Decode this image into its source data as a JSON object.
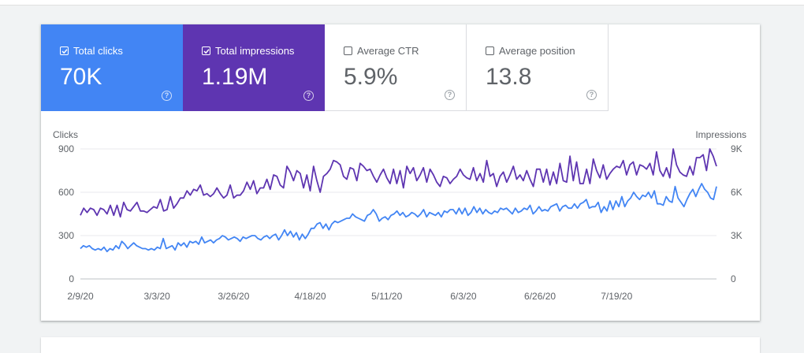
{
  "tiles": [
    {
      "label": "Total clicks",
      "value": "70K",
      "checked": true,
      "color": "#4285f4"
    },
    {
      "label": "Total impressions",
      "value": "1.19M",
      "checked": true,
      "color": "#5e35b1"
    },
    {
      "label": "Average CTR",
      "value": "5.9%",
      "checked": false
    },
    {
      "label": "Average position",
      "value": "13.8",
      "checked": false
    }
  ],
  "help_glyph": "?",
  "chart_data": {
    "type": "line",
    "x_tick_labels": [
      "2/9/20",
      "3/3/20",
      "3/26/20",
      "4/18/20",
      "5/11/20",
      "6/3/20",
      "6/26/20",
      "7/19/20"
    ],
    "x_start": "2020-02-09",
    "x_tick_step_days": 23,
    "left_axis": {
      "label": "Clicks",
      "ticks": [
        "0",
        "300",
        "600",
        "900"
      ],
      "tick_values": [
        0,
        300,
        600,
        900
      ],
      "ylim": [
        0,
        900
      ]
    },
    "right_axis": {
      "label": "Impressions",
      "ticks": [
        "0",
        "3K",
        "6K",
        "9K"
      ],
      "tick_values": [
        0,
        3000,
        6000,
        9000
      ],
      "ylim": [
        0,
        9000
      ]
    },
    "grid": true,
    "series": [
      {
        "axis": "right",
        "color": "#5e35b1",
        "values": [
          4400,
          4900,
          4600,
          4900,
          4800,
          4400,
          4900,
          4800,
          4500,
          5100,
          4400,
          5100,
          4300,
          5300,
          4800,
          4700,
          5000,
          5300,
          4700,
          4700,
          4600,
          4800,
          5000,
          4900,
          5500,
          4700,
          4800,
          5700,
          4900,
          5200,
          5600,
          5600,
          6100,
          5800,
          6200,
          6100,
          6500,
          5800,
          5900,
          5700,
          5900,
          6300,
          5900,
          5600,
          5800,
          6500,
          5600,
          5800,
          5800,
          6100,
          6700,
          6200,
          6800,
          5900,
          6300,
          6300,
          6900,
          6200,
          7200,
          7100,
          6500,
          6300,
          7800,
          7400,
          6800,
          7500,
          7300,
          6300,
          7200,
          6100,
          7800,
          6800,
          6000,
          7100,
          7300,
          7600,
          8200,
          8100,
          7900,
          7100,
          6900,
          7700,
          7600,
          6800,
          8000,
          7800,
          7500,
          7600,
          7100,
          6700,
          7200,
          7600,
          7000,
          6600,
          7600,
          6600,
          7500,
          6300,
          7800,
          7300,
          7700,
          6800,
          7200,
          7700,
          6700,
          7600,
          7200,
          6700,
          6400,
          7100,
          7000,
          6600,
          6900,
          7100,
          7600,
          7200,
          7000,
          6900,
          7700,
          6800,
          7300,
          6700,
          8200,
          7100,
          7300,
          6400,
          7100,
          7400,
          6700,
          7200,
          7800,
          6900,
          7200,
          6800,
          7500,
          6900,
          6400,
          7600,
          7600,
          6700,
          7600,
          6500,
          7400,
          6600,
          8000,
          6800,
          6700,
          8500,
          6800,
          8100,
          6600,
          6600,
          7600,
          6600,
          8300,
          7500,
          7000,
          7900,
          6900,
          7300,
          7600,
          7800,
          7700,
          8200,
          7200,
          7900,
          8100,
          7200,
          7900,
          7800,
          7600,
          8000,
          7200,
          8800,
          7500,
          7100,
          7700,
          7000,
          9000,
          7900,
          7400,
          7200,
          7100,
          7800,
          7200,
          8400,
          8400,
          8600,
          7500,
          9000,
          8500,
          7800
        ]
      },
      {
        "axis": "left",
        "color": "#4285f4",
        "values": [
          210,
          230,
          220,
          230,
          210,
          200,
          210,
          200,
          220,
          190,
          210,
          200,
          230,
          210,
          260,
          240,
          210,
          230,
          250,
          230,
          220,
          210,
          210,
          200,
          210,
          200,
          220,
          210,
          280,
          210,
          220,
          230,
          200,
          250,
          230,
          250,
          220,
          260,
          250,
          260,
          240,
          290,
          250,
          260,
          270,
          250,
          270,
          280,
          300,
          290,
          270,
          280,
          290,
          280,
          260,
          290,
          280,
          290,
          300,
          300,
          280,
          270,
          290,
          300,
          280,
          300,
          310,
          270,
          300,
          340,
          300,
          330,
          290,
          320,
          270,
          310,
          280,
          310,
          350,
          350,
          380,
          390,
          350,
          380,
          340,
          380,
          400,
          390,
          400,
          410,
          420,
          420,
          450,
          430,
          420,
          410,
          400,
          440,
          450,
          480,
          450,
          400,
          420,
          430,
          410,
          440,
          450,
          470,
          440,
          460,
          430,
          440,
          460,
          450,
          430,
          450,
          480,
          430,
          460,
          450,
          440,
          460,
          430,
          470,
          460,
          480,
          480,
          450,
          490,
          450,
          490,
          440,
          460,
          500,
          460,
          490,
          450,
          480,
          460,
          450,
          470,
          460,
          490,
          480,
          490,
          470,
          450,
          490,
          460,
          470,
          490,
          480,
          510,
          450,
          470,
          500,
          470,
          480,
          470,
          500,
          510,
          520,
          470,
          500,
          510,
          490,
          490,
          520,
          490,
          520,
          530,
          550,
          490,
          500,
          500,
          530,
          460,
          500,
          470,
          540,
          480,
          540,
          500,
          570,
          500,
          540,
          560,
          600,
          570,
          550,
          580,
          570,
          600,
          560,
          610,
          520,
          520,
          510,
          570,
          540,
          530,
          640,
          560,
          530,
          500,
          550,
          590,
          620,
          570,
          620,
          660,
          620,
          600,
          560,
          550,
          640
        ]
      }
    ]
  }
}
